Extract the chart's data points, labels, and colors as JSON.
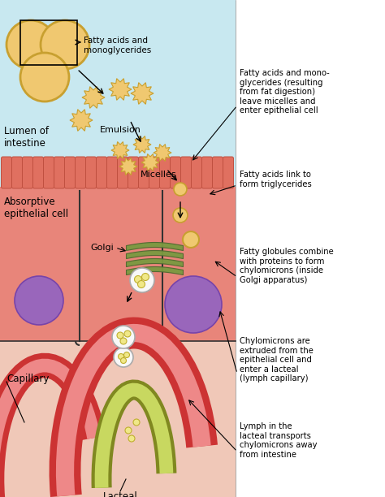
{
  "bg_lumen_color": "#c8e8f0",
  "bg_cell_color": "#e8857a",
  "bg_below_color": "#f0c8b8",
  "fatty_fill": "#f0c870",
  "fatty_edge": "#c8a030",
  "golgi_color": "#7a9a40",
  "golgi_dark": "#506830",
  "nucleus_color": "#9966bb",
  "nucleus_edge": "#7744aa",
  "capillary_color": "#cc3333",
  "capillary_light": "#ee7777",
  "lacteal_fill": "#c8d860",
  "lacteal_edge": "#808820",
  "lacteal_inner": "#b8c850",
  "chylo_fill": "#f0e888",
  "chylo_edge": "#c0b030",
  "microvilli_fill": "#e07060",
  "microvilli_edge": "#c05040",
  "labels": {
    "fatty_acids_mono": "Fatty acids and\nmonoglycerides",
    "emulsion": "Emulsion",
    "micelles": "Micelles",
    "lumen": "Lumen of\nintestine",
    "absorptive": "Absorptive\nepithelial cell",
    "golgi": "Golgi",
    "capillary": "Capillary",
    "lacteal": "Lacteal",
    "right1": "Fatty acids and mono-\nglycerides (resulting\nfrom fat digestion)\nleave micelles and\nenter epithelial cell",
    "right2": "Fatty acids link to\nform triglycerides",
    "right3": "Fatty globules combine\nwith proteins to form\nchylomicrons (inside\nGolgi apparatus)",
    "right4": "Chylomicrons are\nextruded from the\nepithelial cell and\nenter a lacteal\n(lymph capillary)",
    "right5": "Lymph in the\nlacteal transports\nchylomicrons away\nfrom intestine"
  },
  "figsize": [
    4.74,
    6.12
  ],
  "dpi": 100
}
